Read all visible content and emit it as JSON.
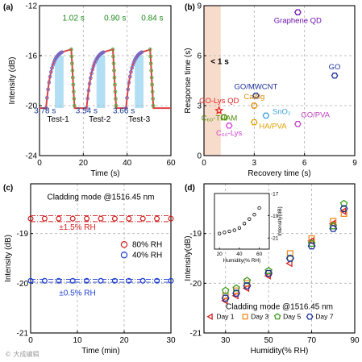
{
  "figure": {
    "watermark": "© 大成编辑"
  },
  "chart_data": [
    {
      "panel": "(a)",
      "type": "line",
      "ylabel": "Intensity (dB)",
      "xlabel": "Time (s)",
      "xlim": [
        0,
        60
      ],
      "ylim": [
        -24,
        -12
      ],
      "xticks": [
        0,
        20,
        40,
        60
      ],
      "yticks": [
        -24,
        -20,
        -16,
        -12
      ],
      "shaded_intervals": [
        [
          7,
          11
        ],
        [
          26,
          30
        ],
        [
          43.5,
          47.5
        ]
      ],
      "test_labels": [
        {
          "text": "Test-1",
          "x": 8.5,
          "y": -21.3
        },
        {
          "text": "Test-2",
          "x": 27.5,
          "y": -21.3
        },
        {
          "text": "Test-3",
          "x": 45.5,
          "y": -21.3
        }
      ],
      "fall_labels": [
        {
          "text": "3.78 s",
          "x": 2.5,
          "y": -20.6,
          "color": "#1a3c8f"
        },
        {
          "text": "3.54 s",
          "x": 21.5,
          "y": -20.6,
          "color": "#1a3c8f"
        },
        {
          "text": "3.66 s",
          "x": 38.5,
          "y": -20.6,
          "color": "#1a3c8f"
        }
      ],
      "rise_labels": [
        {
          "text": "1.02 s",
          "x": 15.5,
          "y": -13.2,
          "color": "#1e8a1e"
        },
        {
          "text": "0.90 s",
          "x": 34.5,
          "y": -13.2,
          "color": "#1e8a1e"
        },
        {
          "text": "0.84 s",
          "x": 51.5,
          "y": -13.2,
          "color": "#1e8a1e"
        }
      ],
      "cycles": [
        {
          "fall_start": 3,
          "fall_end": 10.5,
          "rise_start": 14.5,
          "rise_end": 16
        },
        {
          "fall_start": 21.5,
          "fall_end": 29.5,
          "rise_start": 33.5,
          "rise_end": 35
        },
        {
          "fall_start": 39.5,
          "fall_end": 47,
          "rise_start": 50.5,
          "rise_end": 52
        }
      ],
      "baseline": -20.2,
      "plateau": -15.7
    },
    {
      "panel": "(b)",
      "type": "scatter",
      "xlabel": "Recovery time (s)",
      "ylabel": "Response time (s)",
      "xlim": [
        0,
        9
      ],
      "ylim": [
        0,
        9
      ],
      "xticks": [
        0,
        3,
        6,
        9
      ],
      "yticks": [
        0,
        3,
        6,
        9
      ],
      "shaded_x": [
        0,
        1
      ],
      "annotation": "< 1 s",
      "points": [
        {
          "label": "Graphene QD",
          "x": 5.6,
          "y": 8.6,
          "color": "#6a0dad",
          "marker": "hexagon"
        },
        {
          "label": "GO",
          "x": 7.8,
          "y": 4.8,
          "color": "#1a2f9a",
          "marker": "hexagon"
        },
        {
          "label": "GO/MWCNT",
          "x": 3.1,
          "y": 3.6,
          "color": "#1a2f9a",
          "marker": "hexagon"
        },
        {
          "label": "GO-Lys QD",
          "x": 0.9,
          "y": 2.7,
          "color": "#e02020",
          "marker": "star"
        },
        {
          "label": "CaAlg",
          "x": 3.0,
          "y": 3.0,
          "color": "#e08a00",
          "marker": "hexagon"
        },
        {
          "label": "SnO₂",
          "x": 3.7,
          "y": 2.4,
          "color": "#3aa0e0",
          "marker": "hexagon"
        },
        {
          "label": "C₆₀-THAM",
          "x": 1.2,
          "y": 2.3,
          "color": "#4a8a00",
          "marker": "hexagon"
        },
        {
          "label": "HA/PVA",
          "x": 3.0,
          "y": 2.0,
          "color": "#e0a000",
          "marker": "hexagon"
        },
        {
          "label": "C₆₀-Lys",
          "x": 1.5,
          "y": 1.8,
          "color": "#d040d0",
          "marker": "hexagon"
        },
        {
          "label": "GO/PVA",
          "x": 5.6,
          "y": 1.9,
          "color": "#c040c0",
          "marker": "hexagon"
        }
      ]
    },
    {
      "panel": "(c)",
      "type": "scatter",
      "title": "Cladding mode @1516.45 nm",
      "xlabel": "Time (min)",
      "ylabel": "Intensity (dB)",
      "xlim": [
        0,
        30
      ],
      "ylim": [
        -21,
        -18
      ],
      "xticks": [
        0,
        10,
        20,
        30
      ],
      "yticks": [
        -21,
        -20,
        -19
      ],
      "series": [
        {
          "name": "80% RH",
          "color": "#d32020",
          "mean": -18.7,
          "band": 0.06,
          "band_label": "±1.5% RH",
          "x": [
            0,
            3,
            6,
            9,
            12,
            15,
            18,
            21,
            24,
            27,
            30
          ]
        },
        {
          "name": "40% RH",
          "color": "#2040d0",
          "mean": -19.95,
          "band": 0.03,
          "band_label": "±0.5% RH",
          "x": [
            0,
            3,
            6,
            9,
            12,
            15,
            18,
            21,
            24,
            27,
            30
          ]
        }
      ]
    },
    {
      "panel": "(d)",
      "type": "scatter",
      "xlabel": "Humidity(% RH)",
      "ylabel": "Intensity(dB)",
      "xlim": [
        20,
        90
      ],
      "ylim": [
        -21,
        -18
      ],
      "xticks": [
        30,
        50,
        70,
        90
      ],
      "yticks": [
        -21,
        -20,
        -19
      ],
      "x": [
        30,
        35,
        40,
        50,
        60,
        70,
        80,
        85
      ],
      "title": "Cladding mode @1516.45 nm",
      "series": [
        {
          "name": "Day 1",
          "color": "#d32020",
          "marker": "triangle-left",
          "values": [
            -20.35,
            -20.25,
            -20.1,
            -19.85,
            -19.6,
            -19.15,
            -18.8,
            -18.55
          ]
        },
        {
          "name": "Day 3",
          "color": "#f08a20",
          "marker": "square",
          "values": [
            -20.25,
            -20.15,
            -20.0,
            -19.8,
            -19.4,
            -19.1,
            -18.75,
            -18.6
          ]
        },
        {
          "name": "Day 5",
          "color": "#3a9a20",
          "marker": "pentagon",
          "values": [
            -20.15,
            -20.1,
            -19.95,
            -19.75,
            -19.5,
            -19.2,
            -18.85,
            -18.4
          ]
        },
        {
          "name": "Day 7",
          "color": "#1a2f9a",
          "marker": "hexagon",
          "values": [
            -20.3,
            -20.2,
            -20.05,
            -19.8,
            -19.5,
            -19.25,
            -18.9,
            -18.5
          ]
        }
      ],
      "inset": {
        "xlabel": "Humidity(% RH)",
        "ylabel": "Intensity(dB)",
        "xlim": [
          15,
          70
        ],
        "ylim": [
          -22,
          -17
        ],
        "xticks": [
          20,
          40,
          60
        ],
        "yticks": [
          -21,
          -19,
          -17
        ],
        "x": [
          20,
          25,
          30,
          35,
          40,
          45,
          50,
          55,
          60
        ],
        "values": [
          -20.6,
          -20.5,
          -20.4,
          -20.3,
          -20.1,
          -19.7,
          -19.3,
          -18.9,
          -18.3
        ]
      }
    }
  ]
}
